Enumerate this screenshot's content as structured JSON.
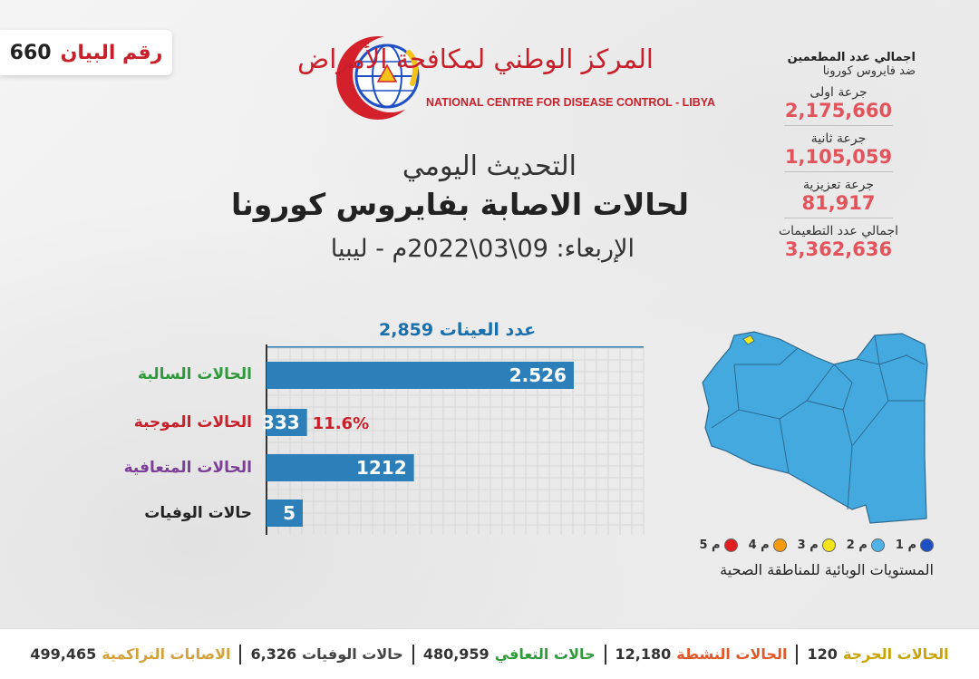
{
  "statement": {
    "label": "رقم البيان",
    "number": "660"
  },
  "logo": {
    "arabic": "المركز الوطني لمكافحة الأمراض",
    "english": "NATIONAL CENTRE FOR DISEASE CONTROL - LIBYA"
  },
  "titles": {
    "line1": "التحديث اليومي",
    "line2": "لحالات الاصابة بفايروس كورونا",
    "line3": "الإربعاء: 09\\03\\2022م - ليبيا"
  },
  "vaccination": {
    "heading": "اجمالي عدد المطعمين",
    "subheading": "ضد فايروس كورونا",
    "items": [
      {
        "label": "جرعة اولى",
        "value": "2,175,660"
      },
      {
        "label": "جرعة ثانية",
        "value": "1,105,059"
      },
      {
        "label": "جرعة تعزيزية",
        "value": "81,917"
      },
      {
        "label": "اجمالي عدد التطعيمات",
        "value": "3,362,636"
      }
    ]
  },
  "chart_data": {
    "type": "bar",
    "orientation": "horizontal",
    "title": "عدد العينات 2,859",
    "categories": [
      "الحالات السالبة",
      "الحالات الموجبة",
      "الحالات المتعافية",
      "حالات الوفيات"
    ],
    "values": [
      2526,
      333,
      1212,
      5
    ],
    "value_labels": [
      "2.526",
      "333",
      "1212",
      "5"
    ],
    "label_colors": [
      "#2f9a3c",
      "#c8202a",
      "#7b3f98",
      "#222222"
    ],
    "annotation": {
      "category": "الحالات الموجبة",
      "text": "11.6%"
    },
    "bar_color": "#2c7fb8",
    "xlim": [
      0,
      3100
    ],
    "grid": true
  },
  "map": {
    "levels": [
      {
        "label": "م 1",
        "color": "#1f4fc4"
      },
      {
        "label": "م 2",
        "color": "#4fb3e8"
      },
      {
        "label": "م 3",
        "color": "#f4e41b"
      },
      {
        "label": "م 4",
        "color": "#f39c12"
      },
      {
        "label": "م 5",
        "color": "#e02020"
      }
    ],
    "caption": "المستويات الوبائية للمناطقة الصحية",
    "region_color": "#43a9df"
  },
  "footer": [
    {
      "label": "الحالات الحرجة",
      "value": "120",
      "color": "#c9a400"
    },
    {
      "label": "الحالات النشطة",
      "value": "12,180",
      "color": "#e2572a"
    },
    {
      "label": "حالات التعافي",
      "value": "480,959",
      "color": "#2f9a3c"
    },
    {
      "label": "حالات الوفيات",
      "value": "6,326",
      "color": "#444444"
    },
    {
      "label": "الاصابات التراكمية",
      "value": "499,465",
      "color": "#d3a13a"
    }
  ]
}
